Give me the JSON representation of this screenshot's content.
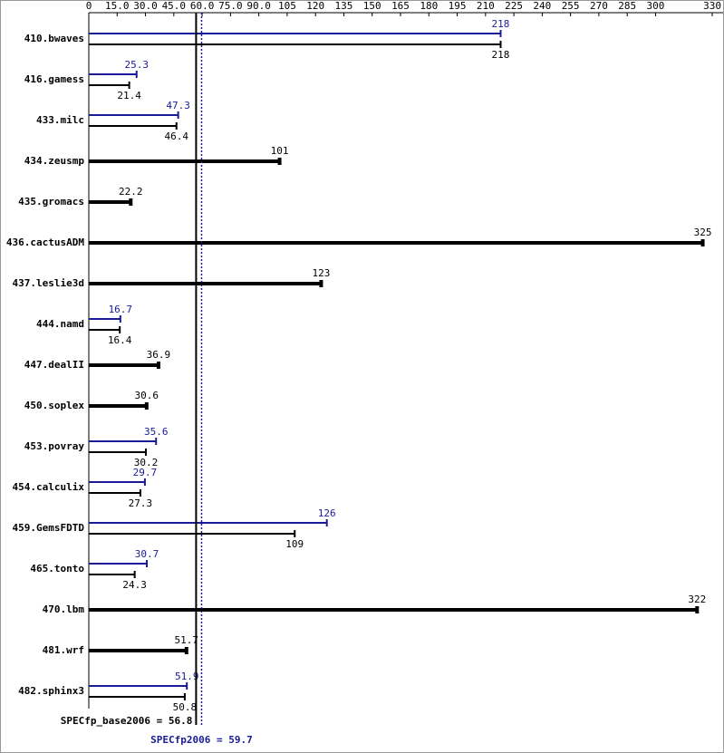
{
  "chart_data": {
    "type": "hbar",
    "categories": [
      "410.bwaves",
      "416.gamess",
      "433.milc",
      "434.zeusmp",
      "435.gromacs",
      "436.cactusADM",
      "437.leslie3d",
      "444.namd",
      "447.dealII",
      "450.soplex",
      "453.povray",
      "454.calculix",
      "459.GemsFDTD",
      "465.tonto",
      "470.lbm",
      "481.wrf",
      "482.sphinx3"
    ],
    "series": [
      {
        "color": "#1a1a96",
        "values": [
          218,
          25.3,
          47.3,
          null,
          null,
          null,
          null,
          16.7,
          null,
          null,
          35.6,
          29.7,
          126,
          30.7,
          null,
          null,
          51.9
        ]
      },
      {
        "color": "#000000",
        "values": [
          218,
          21.4,
          46.4,
          101,
          22.2,
          325,
          123,
          16.4,
          36.9,
          30.6,
          30.2,
          27.3,
          109,
          24.3,
          322,
          51.7,
          50.8
        ]
      }
    ],
    "xlim": [
      0,
      330
    ],
    "xticks": [
      0,
      {
        "value": 15,
        "label": "15.0"
      },
      {
        "value": 30,
        "label": "30.0"
      },
      {
        "value": 45,
        "label": "45.0"
      },
      {
        "value": 60,
        "label": "60.0"
      },
      {
        "value": 75,
        "label": "75.0"
      },
      {
        "value": 90,
        "label": "90.0"
      },
      105,
      120,
      135,
      150,
      165,
      180,
      195,
      210,
      225,
      240,
      255,
      270,
      285,
      300,
      330
    ],
    "reference_lines": [
      {
        "label": "SPECfp_base2006 = 56.8",
        "value": 56.8,
        "color": "#000000",
        "dashed": false
      },
      {
        "label": "SPECfp2006 = 59.7",
        "value": 59.7,
        "color": "#1a1a96",
        "dashed": true
      }
    ]
  }
}
